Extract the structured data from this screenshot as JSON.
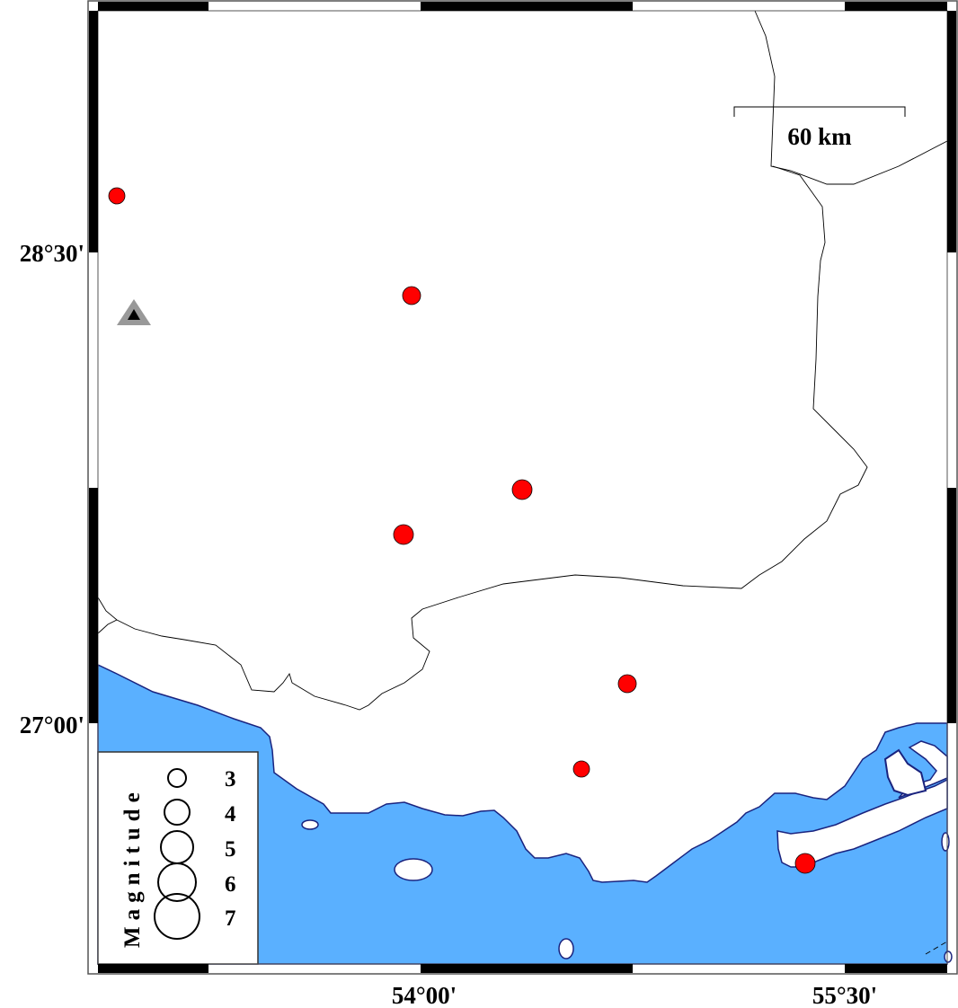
{
  "map": {
    "colors": {
      "sea": "#5ab0ff",
      "coastline": "#1a237e",
      "border": "#000000",
      "event": "#ff0000",
      "station": "#999999"
    },
    "axes": {
      "lat_labels": [
        "28°30'",
        "27°00'"
      ],
      "lon_labels": [
        "54°00'",
        "55°30'"
      ]
    },
    "scale_bar": {
      "label": "60 km"
    },
    "legend": {
      "title": "Magnitude",
      "entries": [
        "3",
        "4",
        "5",
        "6",
        "7"
      ]
    },
    "events_marker_icon": "red-circle",
    "station_marker_icon": "triangle"
  }
}
